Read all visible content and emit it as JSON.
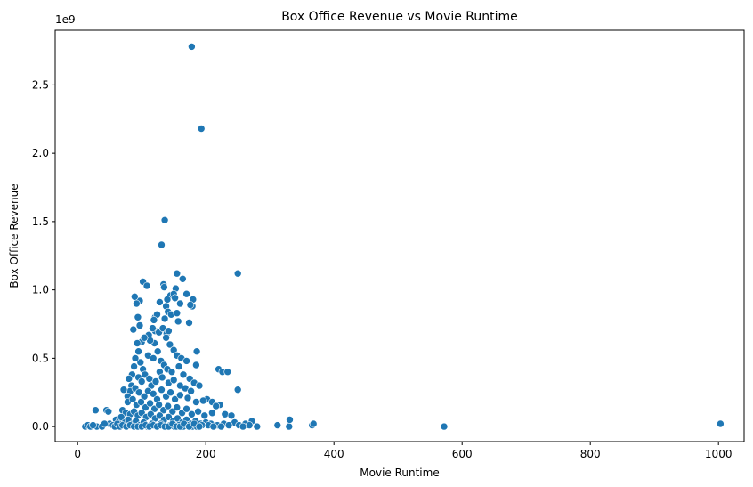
{
  "chart_data": {
    "type": "scatter",
    "title": "Box Office Revenue vs Movie Runtime",
    "xlabel": "Movie Runtime",
    "ylabel": "Box Office Revenue",
    "y_offset_label": "1e9",
    "xlim": [
      -35,
      1040
    ],
    "ylim": [
      -0.11,
      2.9
    ],
    "xticks": [
      0,
      200,
      400,
      600,
      800,
      1000
    ],
    "xtick_labels": [
      "0",
      "200",
      "400",
      "600",
      "800",
      "1000"
    ],
    "yticks": [
      0.0,
      0.5,
      1.0,
      1.5,
      2.0,
      2.5
    ],
    "ytick_labels": [
      "0.0",
      "0.5",
      "1.0",
      "1.5",
      "2.0",
      "2.5"
    ],
    "grid": false,
    "legend": "none",
    "marker_color": "#1f77b4",
    "y_unit_multiplier": 1000000000,
    "points": [
      [
        178,
        2.78
      ],
      [
        193,
        2.18
      ],
      [
        136,
        1.51
      ],
      [
        131,
        1.33
      ],
      [
        155,
        1.12
      ],
      [
        250,
        1.12
      ],
      [
        102,
        1.06
      ],
      [
        108,
        1.03
      ],
      [
        134,
        1.04
      ],
      [
        135,
        1.02
      ],
      [
        164,
        1.08
      ],
      [
        153,
        1.01
      ],
      [
        145,
        0.96
      ],
      [
        150,
        0.97
      ],
      [
        152,
        0.94
      ],
      [
        170,
        0.97
      ],
      [
        180,
        0.93
      ],
      [
        179,
        0.88
      ],
      [
        176,
        0.89
      ],
      [
        97,
        0.92
      ],
      [
        89,
        0.95
      ],
      [
        92,
        0.9
      ],
      [
        140,
        0.93
      ],
      [
        138,
        0.88
      ],
      [
        160,
        0.9
      ],
      [
        128,
        0.91
      ],
      [
        141,
        0.84
      ],
      [
        146,
        0.82
      ],
      [
        155,
        0.83
      ],
      [
        121,
        0.8
      ],
      [
        124,
        0.82
      ],
      [
        94,
        0.8
      ],
      [
        119,
        0.78
      ],
      [
        136,
        0.79
      ],
      [
        157,
        0.77
      ],
      [
        174,
        0.76
      ],
      [
        97,
        0.74
      ],
      [
        87,
        0.71
      ],
      [
        121,
        0.7
      ],
      [
        111,
        0.67
      ],
      [
        117,
        0.72
      ],
      [
        127,
        0.69
      ],
      [
        133,
        0.72
      ],
      [
        139,
        0.68
      ],
      [
        142,
        0.7
      ],
      [
        138,
        0.65
      ],
      [
        120,
        0.61
      ],
      [
        113,
        0.63
      ],
      [
        100,
        0.62
      ],
      [
        104,
        0.65
      ],
      [
        93,
        0.61
      ],
      [
        144,
        0.6
      ],
      [
        150,
        0.56
      ],
      [
        155,
        0.52
      ],
      [
        162,
        0.5
      ],
      [
        170,
        0.48
      ],
      [
        186,
        0.55
      ],
      [
        185,
        0.45
      ],
      [
        95,
        0.55
      ],
      [
        110,
        0.52
      ],
      [
        125,
        0.55
      ],
      [
        118,
        0.5
      ],
      [
        98,
        0.47
      ],
      [
        102,
        0.42
      ],
      [
        88,
        0.44
      ],
      [
        90,
        0.5
      ],
      [
        130,
        0.48
      ],
      [
        135,
        0.45
      ],
      [
        128,
        0.4
      ],
      [
        140,
        0.42
      ],
      [
        147,
        0.4
      ],
      [
        158,
        0.44
      ],
      [
        165,
        0.38
      ],
      [
        175,
        0.35
      ],
      [
        182,
        0.32
      ],
      [
        190,
        0.3
      ],
      [
        220,
        0.42
      ],
      [
        226,
        0.4
      ],
      [
        234,
        0.4
      ],
      [
        202,
        0.2
      ],
      [
        210,
        0.18
      ],
      [
        222,
        0.16
      ],
      [
        216,
        0.15
      ],
      [
        250,
        0.27
      ],
      [
        85,
        0.38
      ],
      [
        80,
        0.35
      ],
      [
        84,
        0.3
      ],
      [
        82,
        0.26
      ],
      [
        72,
        0.27
      ],
      [
        78,
        0.22
      ],
      [
        95,
        0.36
      ],
      [
        100,
        0.33
      ],
      [
        105,
        0.38
      ],
      [
        112,
        0.35
      ],
      [
        115,
        0.3
      ],
      [
        122,
        0.33
      ],
      [
        132,
        0.36
      ],
      [
        142,
        0.32
      ],
      [
        150,
        0.34
      ],
      [
        160,
        0.3
      ],
      [
        168,
        0.28
      ],
      [
        177,
        0.26
      ],
      [
        90,
        0.28
      ],
      [
        96,
        0.25
      ],
      [
        104,
        0.22
      ],
      [
        110,
        0.26
      ],
      [
        118,
        0.24
      ],
      [
        124,
        0.2
      ],
      [
        131,
        0.27
      ],
      [
        138,
        0.22
      ],
      [
        145,
        0.25
      ],
      [
        152,
        0.2
      ],
      [
        160,
        0.23
      ],
      [
        172,
        0.21
      ],
      [
        185,
        0.18
      ],
      [
        196,
        0.19
      ],
      [
        78,
        0.18
      ],
      [
        86,
        0.2
      ],
      [
        92,
        0.16
      ],
      [
        99,
        0.18
      ],
      [
        106,
        0.14
      ],
      [
        113,
        0.17
      ],
      [
        120,
        0.13
      ],
      [
        127,
        0.16
      ],
      [
        134,
        0.12
      ],
      [
        141,
        0.15
      ],
      [
        148,
        0.11
      ],
      [
        155,
        0.14
      ],
      [
        163,
        0.1
      ],
      [
        170,
        0.13
      ],
      [
        178,
        0.09
      ],
      [
        188,
        0.11
      ],
      [
        198,
        0.08
      ],
      [
        210,
        0.1
      ],
      [
        230,
        0.09
      ],
      [
        240,
        0.08
      ],
      [
        70,
        0.12
      ],
      [
        75,
        0.1
      ],
      [
        82,
        0.09
      ],
      [
        88,
        0.11
      ],
      [
        94,
        0.08
      ],
      [
        100,
        0.1
      ],
      [
        107,
        0.07
      ],
      [
        114,
        0.09
      ],
      [
        121,
        0.06
      ],
      [
        128,
        0.08
      ],
      [
        135,
        0.05
      ],
      [
        142,
        0.07
      ],
      [
        149,
        0.04
      ],
      [
        156,
        0.06
      ],
      [
        163,
        0.03
      ],
      [
        170,
        0.05
      ],
      [
        177,
        0.02
      ],
      [
        184,
        0.04
      ],
      [
        192,
        0.02
      ],
      [
        200,
        0.03
      ],
      [
        208,
        0.02
      ],
      [
        218,
        0.01
      ],
      [
        228,
        0.02
      ],
      [
        245,
        0.03
      ],
      [
        252,
        0.01
      ],
      [
        262,
        0.02
      ],
      [
        272,
        0.04
      ],
      [
        280,
        0.0
      ],
      [
        60,
        0.05
      ],
      [
        65,
        0.04
      ],
      [
        68,
        0.07
      ],
      [
        74,
        0.03
      ],
      [
        79,
        0.05
      ],
      [
        86,
        0.02
      ],
      [
        91,
        0.04
      ],
      [
        97,
        0.01
      ],
      [
        103,
        0.03
      ],
      [
        109,
        0.0
      ],
      [
        116,
        0.02
      ],
      [
        123,
        0.0
      ],
      [
        130,
        0.02
      ],
      [
        137,
        0.0
      ],
      [
        144,
        0.01
      ],
      [
        151,
        0.0
      ],
      [
        158,
        0.01
      ],
      [
        165,
        0.0
      ],
      [
        172,
        0.01
      ],
      [
        179,
        0.0
      ],
      [
        186,
        0.0
      ],
      [
        194,
        0.01
      ],
      [
        50,
        0.02
      ],
      [
        55,
        0.01
      ],
      [
        45,
        0.12
      ],
      [
        48,
        0.11
      ],
      [
        28,
        0.12
      ],
      [
        30,
        0.0
      ],
      [
        12,
        0.0
      ],
      [
        16,
        0.01
      ],
      [
        20,
        0.0
      ],
      [
        24,
        0.01
      ],
      [
        38,
        0.0
      ],
      [
        42,
        0.02
      ],
      [
        58,
        0.0
      ],
      [
        62,
        0.02
      ],
      [
        66,
        0.0
      ],
      [
        70,
        0.01
      ],
      [
        76,
        0.0
      ],
      [
        82,
        0.01
      ],
      [
        88,
        0.0
      ],
      [
        94,
        0.0
      ],
      [
        100,
        0.0
      ],
      [
        106,
        0.01
      ],
      [
        112,
        0.0
      ],
      [
        118,
        0.01
      ],
      [
        124,
        0.0
      ],
      [
        130,
        0.01
      ],
      [
        136,
        0.0
      ],
      [
        142,
        0.0
      ],
      [
        148,
        0.02
      ],
      [
        154,
        0.0
      ],
      [
        160,
        0.0
      ],
      [
        166,
        0.02
      ],
      [
        174,
        0.0
      ],
      [
        182,
        0.02
      ],
      [
        190,
        0.0
      ],
      [
        204,
        0.01
      ],
      [
        212,
        0.0
      ],
      [
        224,
        0.0
      ],
      [
        236,
        0.01
      ],
      [
        258,
        0.0
      ],
      [
        268,
        0.01
      ],
      [
        312,
        0.01
      ],
      [
        330,
        0.0
      ],
      [
        331,
        0.05
      ],
      [
        366,
        0.01
      ],
      [
        368,
        0.02
      ],
      [
        572,
        0.0
      ],
      [
        1003,
        0.02
      ]
    ]
  }
}
